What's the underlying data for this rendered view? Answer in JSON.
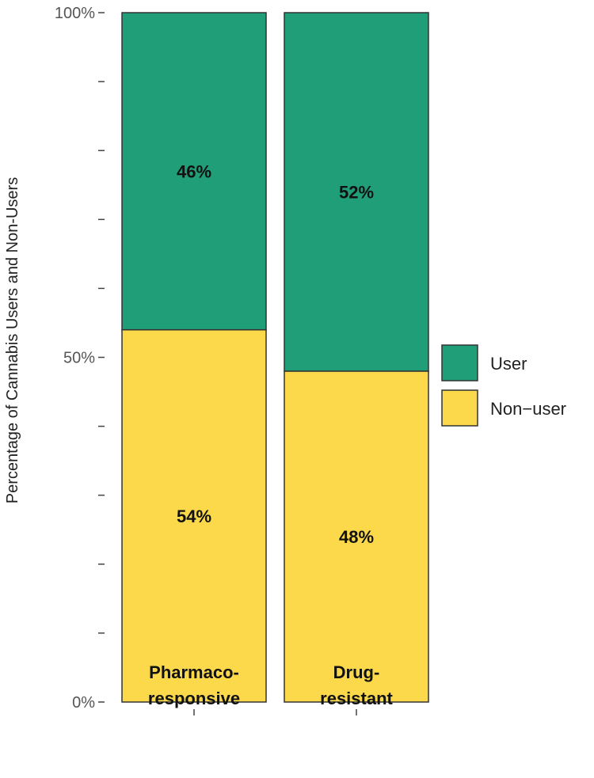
{
  "chart_data": {
    "type": "bar",
    "stacked": true,
    "percent": true,
    "categories": [
      [
        "Pharmaco-",
        "responsive"
      ],
      [
        "Drug-",
        "resistant"
      ]
    ],
    "series": [
      {
        "name": "User",
        "values": [
          46,
          52
        ],
        "labels": [
          "46%",
          "52%"
        ],
        "color": "#1f9e77"
      },
      {
        "name": "Non−user",
        "values": [
          54,
          48
        ],
        "labels": [
          "54%",
          "48%"
        ],
        "color": "#fbd94a"
      }
    ],
    "stack_order_bottom_to_top": [
      "Non−user",
      "User"
    ],
    "ylabel": "Percentage of Cannabis Users and Non-Users",
    "xlabel": "",
    "ylim": [
      0,
      100
    ],
    "yticks_major": [
      {
        "value": 0,
        "label": "0%"
      },
      {
        "value": 50,
        "label": "50%"
      },
      {
        "value": 100,
        "label": "100%"
      }
    ],
    "yticks_minor": [
      10,
      20,
      30,
      40,
      60,
      70,
      80,
      90
    ],
    "grid": false,
    "legend": {
      "position": "right",
      "entries": [
        "User",
        "Non−user"
      ]
    }
  }
}
